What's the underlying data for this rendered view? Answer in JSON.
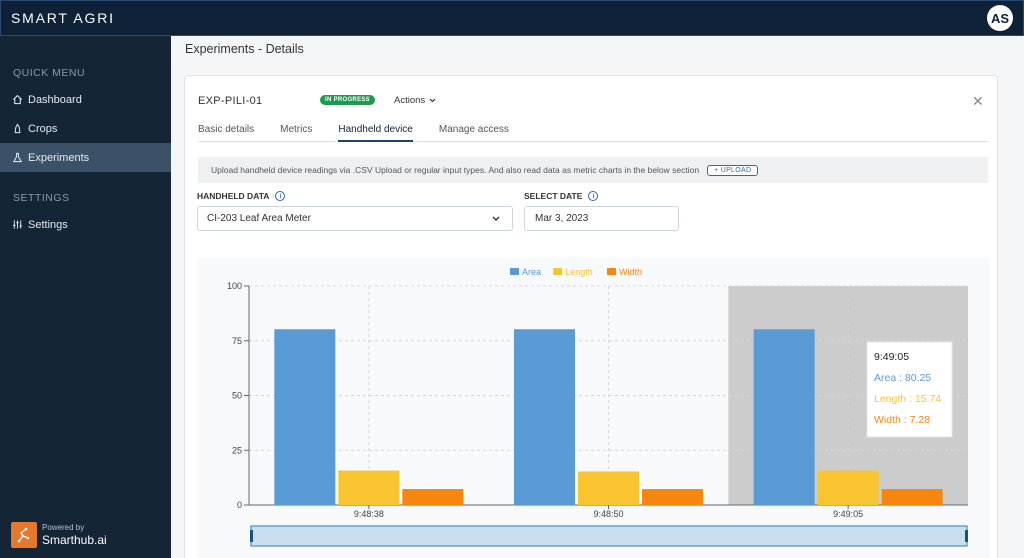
{
  "app": {
    "brand": "SMART AGRI",
    "avatar_initials": "AS"
  },
  "sidebar": {
    "quick_menu_title": "QUICK MENU",
    "items": [
      {
        "label": "Dashboard",
        "icon": "home-icon"
      },
      {
        "label": "Crops",
        "icon": "sprout-icon"
      },
      {
        "label": "Experiments",
        "icon": "flask-icon",
        "active": true
      }
    ],
    "settings_title": "SETTINGS",
    "settings_items": [
      {
        "label": "Settings",
        "icon": "sliders-icon"
      }
    ],
    "powered_by": "Powered by",
    "powered_name": "Smarthub.ai"
  },
  "page": {
    "title": "Experiments - Details"
  },
  "experiment": {
    "id": "EXP-PILI-01",
    "status": "IN PROGRESS",
    "actions_label": "Actions"
  },
  "tabs": [
    {
      "label": "Basic details"
    },
    {
      "label": "Metrics"
    },
    {
      "label": "Handheld device",
      "active": true
    },
    {
      "label": "Manage access"
    }
  ],
  "info": {
    "text": "Upload handheld device readings via .CSV Upload or regular input types. And also read data as metric charts in the below section",
    "upload_label": "+ UPLOAD"
  },
  "form": {
    "handheld_label": "HANDHELD DATA",
    "handheld_value": "CI-203 Leaf Area Meter",
    "date_label": "SELECT DATE",
    "date_value": "Mar 3, 2023"
  },
  "colors": {
    "area": "#5b9bd5",
    "length": "#f8c42f",
    "width": "#f7860f",
    "accent": "#19437a",
    "badge": "#1f9a4f"
  },
  "chart_data": {
    "type": "bar",
    "categories": [
      "9:48:38",
      "9:48:50",
      "9:49:05"
    ],
    "series": [
      {
        "name": "Area",
        "values": [
          80.25,
          80.25,
          80.25
        ]
      },
      {
        "name": "Length",
        "values": [
          15.74,
          15.3,
          15.74
        ]
      },
      {
        "name": "Width",
        "values": [
          7.28,
          7.28,
          7.28
        ]
      }
    ],
    "ylim": [
      0,
      100
    ],
    "yticks": [
      0,
      25,
      50,
      75,
      100
    ],
    "grid": true,
    "legend": "top-center",
    "highlighted_category": "9:49:05",
    "tooltip": {
      "title": "9:49:05",
      "lines": [
        "Area : 80.25",
        "Length : 15.74",
        "Width : 7.28"
      ]
    }
  }
}
